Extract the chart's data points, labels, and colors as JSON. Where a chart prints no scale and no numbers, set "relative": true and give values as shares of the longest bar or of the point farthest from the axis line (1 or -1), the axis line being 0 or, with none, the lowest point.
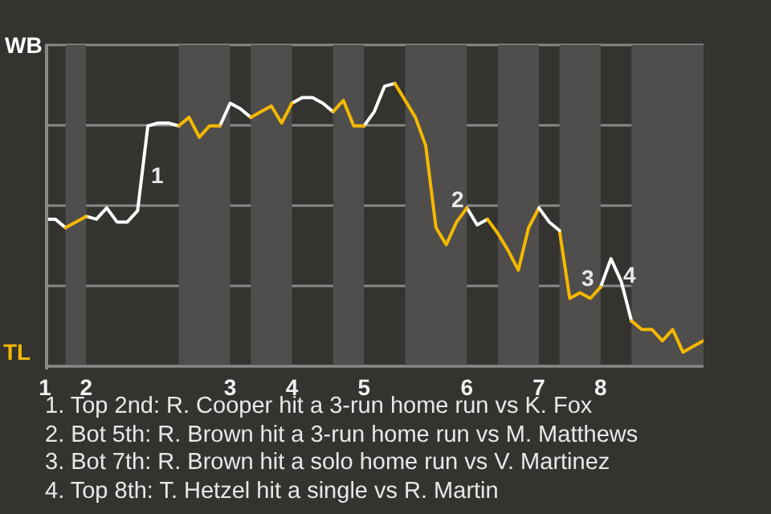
{
  "chart_data": {
    "type": "line",
    "relative": true,
    "categories": [
      "1",
      null,
      null,
      null,
      "2",
      null,
      null,
      null,
      null,
      null,
      null,
      null,
      null,
      null,
      null,
      null,
      null,
      null,
      "3",
      null,
      null,
      null,
      null,
      null,
      "4",
      null,
      null,
      null,
      null,
      null,
      null,
      "5",
      null,
      null,
      null,
      null,
      null,
      null,
      null,
      null,
      null,
      "6",
      null,
      null,
      null,
      null,
      null,
      null,
      "7",
      null,
      null,
      null,
      null,
      null,
      "8",
      null,
      null,
      null,
      null,
      null,
      null,
      null,
      null,
      null,
      null
    ],
    "series": [
      {
        "color": "#ffffff",
        "values": [
          0.52,
          0.52,
          0.49,
          null,
          0.53,
          0.52,
          0.56,
          0.51,
          0.51,
          0.55,
          0.85,
          0.86,
          0.86,
          0.85,
          null,
          null,
          null,
          0.85,
          0.93,
          0.91,
          0.88,
          null,
          null,
          null,
          0.93,
          0.95,
          0.95,
          0.93,
          0.9,
          null,
          null,
          0.85,
          0.9,
          0.99,
          1,
          null,
          null,
          null,
          null,
          null,
          null,
          0.56,
          0.5,
          0.52,
          null,
          null,
          null,
          null,
          null,
          null,
          null,
          null,
          null,
          null,
          0.28,
          0.38,
          0.3,
          0.16,
          null,
          null,
          null,
          null,
          null,
          null,
          null
        ]
      },
      {
        "color": "#f5b800",
        "values": [
          null,
          null,
          null,
          null,
          null,
          null,
          null,
          null,
          null,
          null,
          null,
          null,
          null,
          0.85,
          0.88,
          0.81,
          0.85,
          0.85,
          null,
          null,
          0.88,
          0.9,
          0.92,
          0.86,
          0.93,
          null,
          null,
          null,
          0.9,
          0.94,
          0.85,
          0.85,
          null,
          null,
          1,
          0.94,
          0.88,
          0.78,
          0.49,
          0.43,
          0.51,
          0.56,
          null,
          0.52,
          0.47,
          0.41,
          0.34,
          0.49,
          0.56,
          null,
          0.48,
          0.24,
          0.26,
          0.24,
          0.28,
          null,
          null,
          0.16,
          0.13,
          0.13,
          0.09,
          0.13,
          0.05,
          0.07,
          0.09
        ]
      },
      {
        "color": "#ffffff",
        "values": [
          null,
          null,
          null,
          null,
          null,
          null,
          null,
          null,
          null,
          null,
          null,
          null,
          null,
          null,
          null,
          null,
          null,
          null,
          null,
          null,
          null,
          null,
          null,
          null,
          null,
          null,
          null,
          null,
          null,
          null,
          null,
          null,
          null,
          null,
          null,
          null,
          null,
          null,
          null,
          null,
          null,
          null,
          null,
          null,
          null,
          null,
          null,
          null,
          0.56,
          0.51,
          0.48,
          null,
          null,
          null,
          null,
          null,
          null,
          null,
          null,
          null,
          null,
          null,
          null,
          null,
          null
        ]
      },
      {
        "color": "#f5b800",
        "values": [
          null,
          null,
          0.49,
          0.51,
          0.53,
          null,
          null,
          null,
          null,
          null,
          null,
          null,
          null,
          null,
          null,
          null,
          null,
          null,
          null,
          null,
          null,
          null,
          null,
          null,
          null,
          null,
          null,
          null,
          null,
          null,
          null,
          null,
          null,
          null,
          null,
          null,
          null,
          null,
          null,
          null,
          null,
          null,
          null,
          null,
          null,
          null,
          null,
          null,
          null,
          null,
          null,
          null,
          null,
          null,
          null,
          null,
          null,
          null,
          null,
          null,
          null,
          null,
          null,
          null,
          null
        ]
      }
    ],
    "grid": "y",
    "marker": "none",
    "line_style": "solid",
    "annotations": [
      "WB",
      "TL",
      "1",
      "2",
      "3",
      "4",
      "1. Top 2nd: R. Cooper hit a 3-run home run vs K. Fox",
      "2. Bot 5th: R. Brown hit a 3-run home run vs M. Matthews",
      "3. Bot 7th: R. Brown hit a solo home run vs V. Martinez",
      "4. Top 8th: T. Hetzel hit a single vs R. Martin"
    ]
  }
}
